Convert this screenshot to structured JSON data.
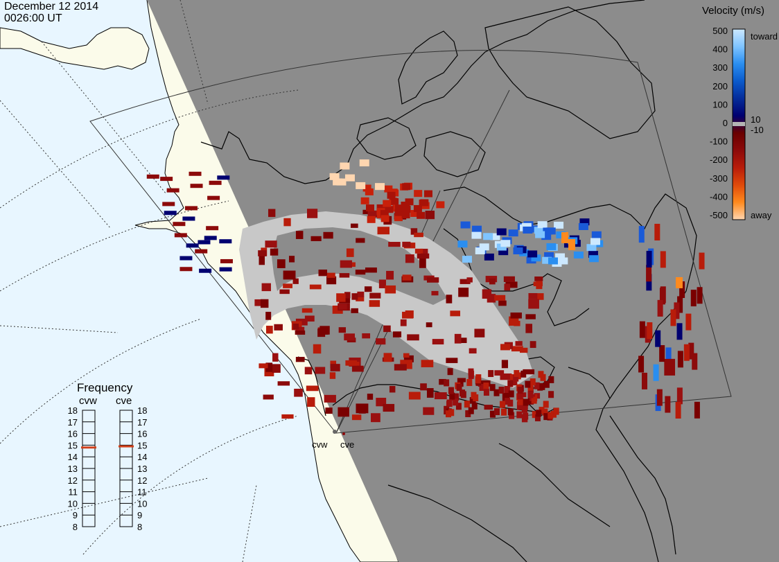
{
  "header": {
    "date": "December 12 2014",
    "time": "0026:00 UT"
  },
  "colors": {
    "ocean": "#e8f6ff",
    "land": "#fbfbea",
    "night": "#8c8c8c",
    "ground_scatter": "#c8c8c8"
  },
  "velocity_scale": {
    "title": "Velocity (m/s)",
    "ticks": [
      "500",
      "400",
      "300",
      "200",
      "100",
      "0",
      "-100",
      "-200",
      "-300",
      "-400",
      "-500"
    ],
    "toward_label": "toward",
    "away_label": "away",
    "threshold_pos": "10",
    "threshold_neg": "-10",
    "stops": [
      "#cce8ff",
      "#7fc4ff",
      "#2a8ef0",
      "#0a5acc",
      "#042c9a",
      "#000070",
      "#6a0000",
      "#8c0a0a",
      "#b81c0a",
      "#e04a0a",
      "#ff8a1e",
      "#ffd6b0"
    ]
  },
  "frequency_panel": {
    "title": "Frequency",
    "radars": [
      {
        "name": "cvw",
        "frequency_mhz": 14.8
      },
      {
        "name": "cve",
        "frequency_mhz": 14.9
      }
    ],
    "ticks": [
      "18",
      "17",
      "16",
      "15",
      "14",
      "13",
      "12",
      "11",
      "10",
      "9",
      "8"
    ]
  },
  "radar_sites": [
    "cvw",
    "cve"
  ]
}
